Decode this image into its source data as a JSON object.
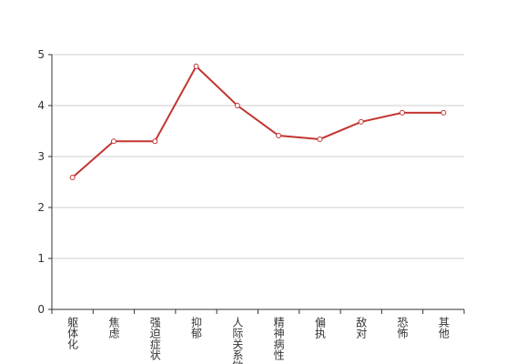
{
  "chart_data": {
    "type": "line",
    "categories": [
      "躯体化",
      "焦虑",
      "强迫症状",
      "抑郁",
      "人际关系敏感",
      "精神病性",
      "偏执",
      "敌对",
      "恐怖",
      "其他"
    ],
    "values": [
      2.59,
      3.3,
      3.3,
      4.77,
      4.0,
      3.41,
      3.34,
      3.68,
      3.86,
      3.86
    ],
    "color": "#c23531",
    "ylim": [
      0,
      5
    ],
    "yticks": [
      0,
      1,
      2,
      3,
      4,
      5
    ],
    "grid": true
  }
}
